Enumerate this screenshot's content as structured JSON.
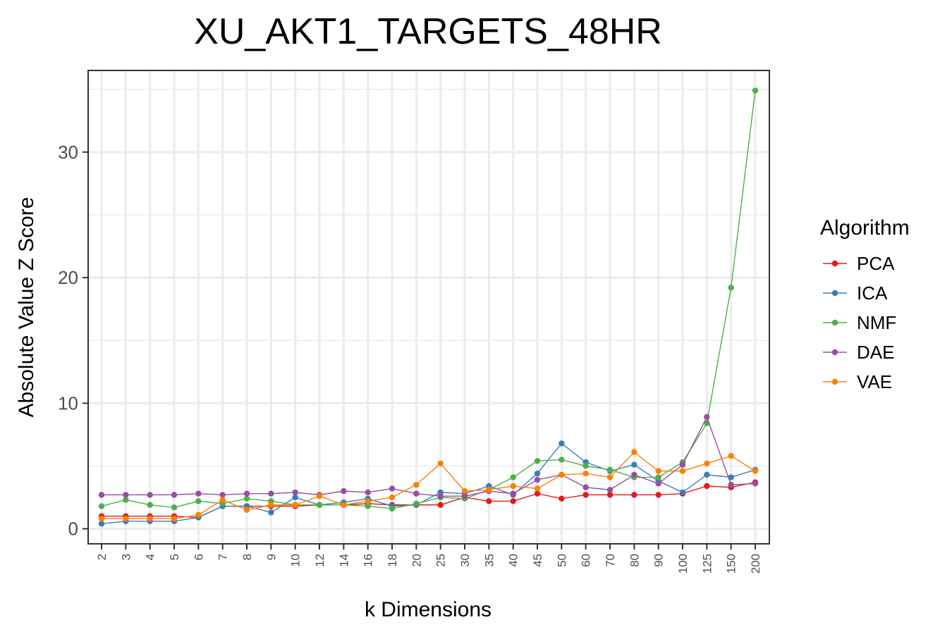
{
  "chart_data": {
    "type": "line",
    "title": "XU_AKT1_TARGETS_48HR",
    "xlabel": "k Dimensions",
    "ylabel": "Absolute Value Z Score",
    "categories": [
      "2",
      "3",
      "4",
      "5",
      "6",
      "7",
      "8",
      "9",
      "10",
      "12",
      "14",
      "16",
      "18",
      "20",
      "25",
      "30",
      "35",
      "40",
      "45",
      "50",
      "60",
      "70",
      "80",
      "90",
      "100",
      "125",
      "150",
      "200"
    ],
    "ylim": [
      -1.2,
      36.5
    ],
    "yticks": [
      0,
      10,
      20,
      30
    ],
    "yticklabels": [
      "0",
      "10",
      "20",
      "30"
    ],
    "grid": true,
    "legend_title": "Algorithm",
    "legend_position": "right",
    "series": [
      {
        "name": "PCA",
        "color": "#e41a1c",
        "values": [
          1.0,
          1.0,
          1.0,
          1.0,
          0.9,
          1.8,
          1.8,
          1.8,
          1.8,
          1.9,
          1.9,
          2.0,
          1.9,
          1.9,
          1.9,
          2.5,
          2.2,
          2.2,
          2.8,
          2.4,
          2.7,
          2.7,
          2.7,
          2.7,
          2.8,
          3.4,
          3.3,
          3.7
        ]
      },
      {
        "name": "ICA",
        "color": "#377eb8",
        "values": [
          0.4,
          0.6,
          0.6,
          0.6,
          0.9,
          1.8,
          1.8,
          1.3,
          2.5,
          1.9,
          2.1,
          2.4,
          1.8,
          1.9,
          2.9,
          2.8,
          3.4,
          2.7,
          4.4,
          6.8,
          5.3,
          4.6,
          5.1,
          3.8,
          2.9,
          4.3,
          4.1,
          4.7
        ]
      },
      {
        "name": "NMF",
        "color": "#4daf4a",
        "values": [
          1.8,
          2.3,
          1.9,
          1.7,
          2.2,
          2.0,
          2.4,
          2.2,
          1.9,
          1.9,
          1.9,
          1.8,
          1.6,
          2.0,
          2.5,
          2.4,
          3.1,
          4.1,
          5.4,
          5.5,
          5.0,
          4.7,
          4.1,
          4.1,
          5.3,
          8.4,
          19.2,
          34.9
        ]
      },
      {
        "name": "DAE",
        "color": "#984ea3",
        "values": [
          2.7,
          2.7,
          2.7,
          2.7,
          2.8,
          2.7,
          2.8,
          2.8,
          2.9,
          2.7,
          3.0,
          2.9,
          3.2,
          2.8,
          2.6,
          2.6,
          3.0,
          2.8,
          3.9,
          4.3,
          3.3,
          3.1,
          4.3,
          3.6,
          5.1,
          8.9,
          3.5,
          3.6
        ]
      },
      {
        "name": "VAE",
        "color": "#ff7f00",
        "values": [
          0.8,
          0.8,
          0.8,
          0.8,
          1.1,
          2.3,
          1.5,
          1.9,
          1.9,
          2.6,
          1.9,
          2.2,
          2.5,
          3.5,
          5.2,
          3.0,
          3.1,
          3.4,
          3.2,
          4.3,
          4.4,
          4.1,
          6.1,
          4.6,
          4.6,
          5.2,
          5.8,
          4.6
        ]
      }
    ]
  }
}
